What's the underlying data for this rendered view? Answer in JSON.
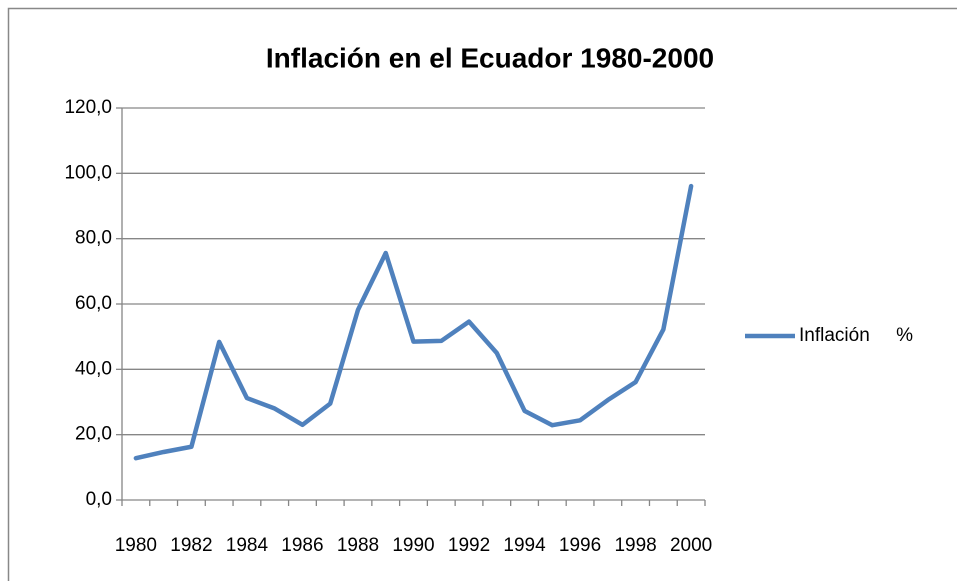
{
  "chart_data": {
    "type": "line",
    "title": "Inflación en el Ecuador 1980-2000",
    "categories": [
      "1980",
      null,
      "1982",
      null,
      "1984",
      null,
      "1986",
      null,
      "1988",
      null,
      "1990",
      null,
      "1992",
      null,
      "1994",
      null,
      "1996",
      null,
      "1998",
      null,
      "2000"
    ],
    "series": [
      {
        "name": "Inflación     %",
        "color": "#4f81bd",
        "values": [
          12.8,
          14.7,
          16.3,
          48.4,
          31.2,
          28.0,
          23.0,
          29.5,
          58.2,
          75.6,
          48.5,
          48.7,
          54.6,
          45.0,
          27.3,
          22.9,
          24.4,
          30.6,
          36.1,
          52.2,
          96.1
        ]
      }
    ],
    "ylim": [
      0,
      120
    ],
    "yticks": [
      {
        "value": 0,
        "label": "0,0"
      },
      {
        "value": 20,
        "label": "20,0"
      },
      {
        "value": 40,
        "label": "40,0"
      },
      {
        "value": 60,
        "label": "60,0"
      },
      {
        "value": 80,
        "label": "80,0"
      },
      {
        "value": 100,
        "label": "100,0"
      },
      {
        "value": 120,
        "label": "120,0"
      }
    ],
    "grid": true,
    "legend": "right"
  }
}
